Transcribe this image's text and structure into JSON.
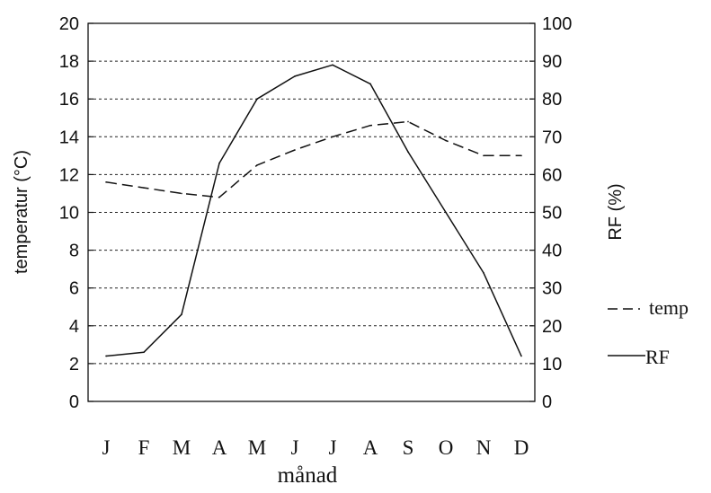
{
  "chart_data": {
    "type": "line",
    "categories": [
      "J",
      "F",
      "M",
      "A",
      "M",
      "J",
      "J",
      "A",
      "S",
      "O",
      "N",
      "D"
    ],
    "xlabel": "månad",
    "y_left": {
      "label": "temperatur (°C)",
      "lim": [
        0,
        20
      ],
      "ticks": [
        "0",
        "2",
        "4",
        "6",
        "8",
        "10",
        "12",
        "14",
        "16",
        "18",
        "20"
      ]
    },
    "y_right": {
      "label": "RF (%)",
      "lim": [
        0,
        100
      ],
      "ticks": [
        "0",
        "10",
        "20",
        "30",
        "40",
        "50",
        "60",
        "70",
        "80",
        "90",
        "100"
      ]
    },
    "grid": "horizontal dashed",
    "legend_placement": "right",
    "series": [
      {
        "name": "temp",
        "axis": "left",
        "style": "dashed",
        "values": [
          11.6,
          11.3,
          11.0,
          10.8,
          12.5,
          13.3,
          14.0,
          14.6,
          14.8,
          13.8,
          13.0,
          13.0
        ]
      },
      {
        "name": "RF",
        "axis": "right",
        "style": "solid",
        "values": [
          12,
          13,
          23,
          63,
          80,
          86,
          89,
          84,
          66,
          50,
          34,
          12
        ]
      }
    ]
  }
}
